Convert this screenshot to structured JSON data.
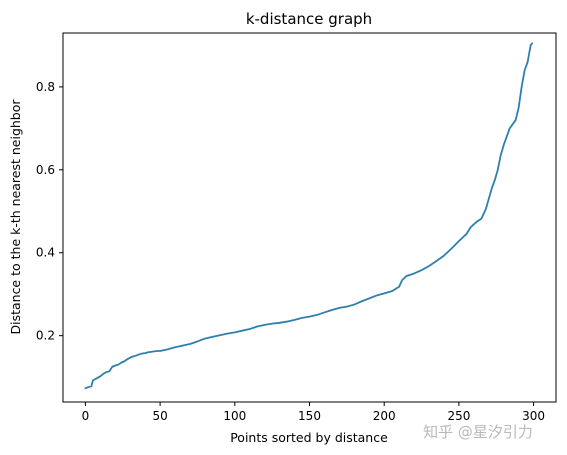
{
  "chart_data": {
    "type": "line",
    "title": "k-distance graph",
    "xlabel": "Points sorted by distance",
    "ylabel": "Distance to the k-th nearest neighbor",
    "xlim": [
      -15,
      315
    ],
    "ylim": [
      0.04,
      0.93
    ],
    "xticks": [
      0,
      50,
      100,
      150,
      200,
      250,
      300
    ],
    "yticks": [
      0.2,
      0.4,
      0.6,
      0.8
    ],
    "grid": false,
    "legend": "none",
    "series": [
      {
        "color": "#2f7fae",
        "x": [
          0,
          2,
          4,
          5,
          6,
          8,
          10,
          12,
          14,
          16,
          18,
          20,
          22,
          24,
          26,
          28,
          30,
          32,
          34,
          36,
          38,
          40,
          42,
          44,
          46,
          48,
          50,
          55,
          60,
          65,
          70,
          75,
          80,
          85,
          90,
          95,
          100,
          105,
          110,
          115,
          120,
          125,
          130,
          135,
          140,
          145,
          150,
          155,
          160,
          165,
          170,
          175,
          180,
          185,
          190,
          195,
          200,
          205,
          210,
          212,
          215,
          220,
          225,
          230,
          235,
          240,
          245,
          250,
          255,
          258,
          262,
          265,
          268,
          270,
          272,
          274,
          276,
          278,
          280,
          282,
          284,
          286,
          288,
          290,
          292,
          294,
          295,
          296,
          297,
          298,
          299
        ],
        "y": [
          0.073,
          0.076,
          0.078,
          0.092,
          0.094,
          0.098,
          0.102,
          0.108,
          0.112,
          0.114,
          0.125,
          0.128,
          0.13,
          0.135,
          0.138,
          0.143,
          0.147,
          0.15,
          0.152,
          0.155,
          0.157,
          0.158,
          0.16,
          0.161,
          0.162,
          0.163,
          0.163,
          0.167,
          0.172,
          0.176,
          0.18,
          0.186,
          0.193,
          0.197,
          0.201,
          0.205,
          0.208,
          0.212,
          0.216,
          0.222,
          0.226,
          0.229,
          0.231,
          0.234,
          0.238,
          0.243,
          0.246,
          0.25,
          0.256,
          0.262,
          0.267,
          0.27,
          0.275,
          0.283,
          0.29,
          0.297,
          0.302,
          0.307,
          0.318,
          0.334,
          0.344,
          0.35,
          0.358,
          0.368,
          0.38,
          0.393,
          0.41,
          0.428,
          0.445,
          0.462,
          0.475,
          0.482,
          0.505,
          0.53,
          0.555,
          0.575,
          0.6,
          0.635,
          0.66,
          0.68,
          0.7,
          0.71,
          0.72,
          0.75,
          0.8,
          0.84,
          0.85,
          0.86,
          0.88,
          0.9,
          0.905
        ]
      }
    ]
  },
  "watermark": "知乎 @星汐引力"
}
